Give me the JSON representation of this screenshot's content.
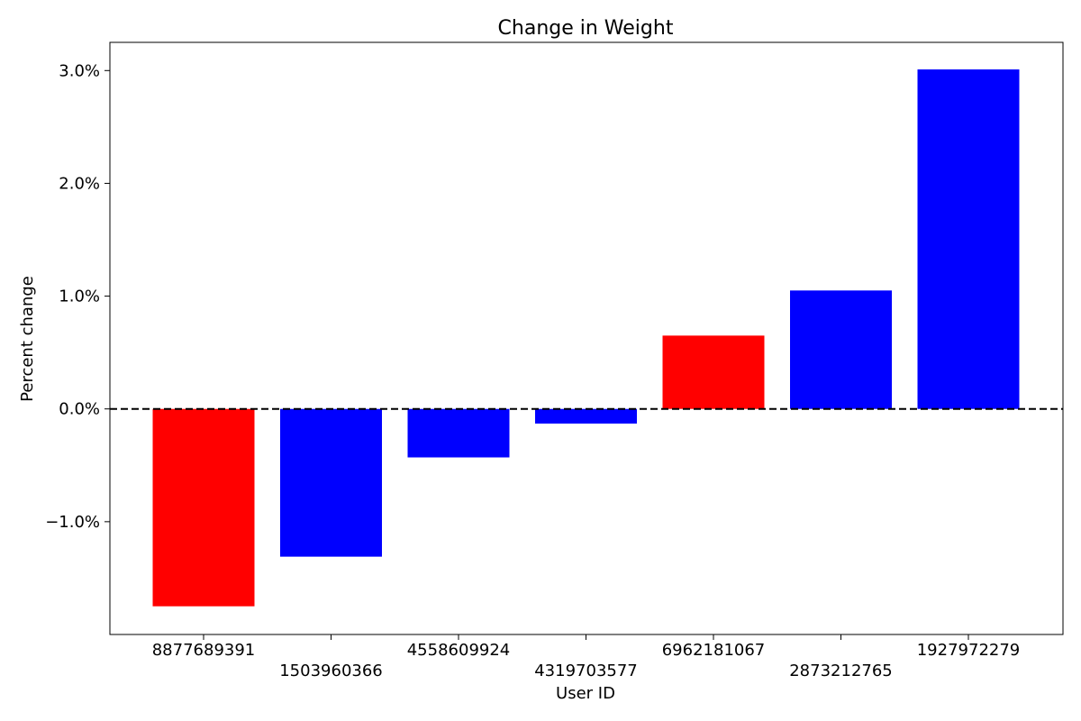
{
  "chart_data": {
    "type": "bar",
    "title": "Change in Weight",
    "xlabel": "User ID",
    "ylabel": "Percent change",
    "categories": [
      "8877689391",
      "1503960366",
      "4558609924",
      "4319703577",
      "6962181067",
      "2873212765",
      "1927972279"
    ],
    "values": [
      -1.75,
      -1.31,
      -0.43,
      -0.13,
      0.65,
      1.05,
      3.01
    ],
    "colors": [
      "#ff0000",
      "#0000ff",
      "#0000ff",
      "#0000ff",
      "#ff0000",
      "#0000ff",
      "#0000ff"
    ],
    "ylim": [
      -2.0,
      3.25
    ],
    "yticks": [
      -1.0,
      0.0,
      1.0,
      2.0,
      3.0
    ],
    "ytick_labels": [
      "−1.0%",
      "0.0%",
      "1.0%",
      "2.0%",
      "3.0%"
    ],
    "reference_line": {
      "y": 0.0,
      "style": "dashed",
      "color": "#000000"
    },
    "grid": false,
    "legend": "none"
  }
}
